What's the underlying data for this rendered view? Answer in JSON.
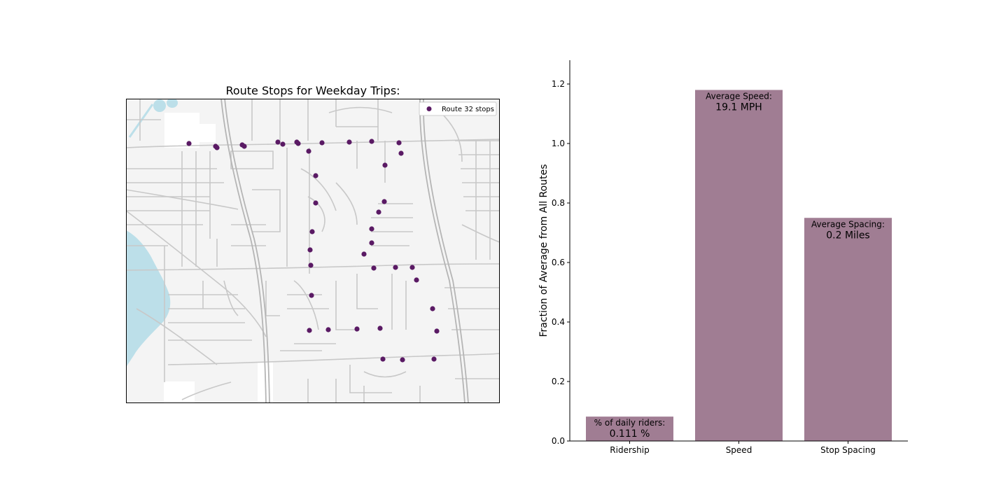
{
  "map": {
    "title": "Route Stops for Weekday Trips:",
    "legend_label": "Route 32 stops",
    "colors": {
      "land": "#f4f4f4",
      "water": "#bcdfe9",
      "roads": "#c8c8c8",
      "highway": "#b9b9b9",
      "stop": "#5a1a64"
    }
  },
  "chart_data": {
    "type": "bar",
    "categories": [
      "Ridership",
      "Speed",
      "Stop Spacing"
    ],
    "values": [
      0.082,
      1.18,
      0.75
    ],
    "ylabel": "Fraction of Average from All Routes",
    "ylim": [
      0,
      1.28
    ],
    "yticks": [
      "0.0",
      "0.2",
      "0.4",
      "0.6",
      "0.8",
      "1.0",
      "1.2"
    ],
    "bar_color": "#a07d93",
    "annotations": [
      {
        "line1": "% of daily riders:",
        "line2": "0.111 %"
      },
      {
        "line1": "Average Speed:",
        "line2": "19.1 MPH"
      },
      {
        "line1": "Average Spacing:",
        "line2": "0.2 Miles"
      }
    ]
  }
}
